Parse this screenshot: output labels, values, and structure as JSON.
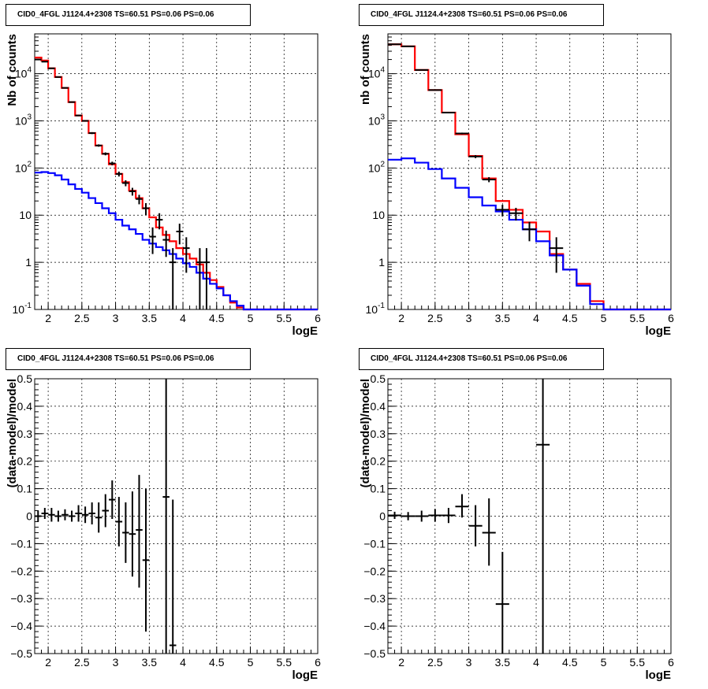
{
  "panels": [
    {
      "title": "CID0_4FGL J1124.4+2308 TS=60.51 PS=0.06 PS=0.06",
      "chart_data": {
        "type": "line",
        "title": "CID0_4FGL J1124.4+2308 TS=60.51 PS=0.06 PS=0.06",
        "xlabel": "logE",
        "ylabel": "Nb of counts",
        "xlim": [
          1.8,
          6.0
        ],
        "ylim": [
          0.1,
          70000
        ],
        "yscale": "log",
        "grid": true,
        "xticks": [
          "2",
          "2.5",
          "3",
          "3.5",
          "4",
          "4.5",
          "5",
          "5.5",
          "6"
        ],
        "yticks": [
          "10^-1",
          "1",
          "10",
          "10^2",
          "10^3",
          "10^4"
        ],
        "bin_edges": [
          1.8,
          1.9,
          2.0,
          2.1,
          2.2,
          2.3,
          2.4,
          2.5,
          2.6,
          2.7,
          2.8,
          2.9,
          3.0,
          3.1,
          3.2,
          3.3,
          3.4,
          3.5,
          3.6,
          3.7,
          3.8,
          3.9,
          4.0,
          4.1,
          4.2,
          4.3,
          4.4,
          4.5,
          4.6,
          4.7,
          4.8,
          4.9,
          5.0,
          5.1,
          5.2,
          5.3,
          5.4,
          5.5,
          5.6,
          5.7,
          5.8,
          5.9,
          6.0
        ],
        "series": [
          {
            "color": "#ff0000",
            "style": "step",
            "values": [
              22000,
              19000,
              13000,
              8500,
              5000,
              2500,
              1300,
              1000,
              550,
              300,
              200,
              120,
              75,
              50,
              33,
              23,
              14,
              9,
              5.5,
              3.8,
              2.8,
              2.0,
              1.5,
              1.2,
              0.9,
              0.6,
              0.42,
              0.3,
              0.2,
              0.14,
              0.11,
              0.1,
              0.1,
              0.1,
              0.1,
              0.1,
              0.1,
              0.1,
              0.1,
              0.1,
              0.1,
              0.1
            ]
          },
          {
            "color": "#0000ff",
            "style": "step",
            "values": [
              80,
              82,
              78,
              70,
              57,
              45,
              36,
              30,
              23,
              18,
              14,
              11,
              8,
              6,
              5,
              4,
              3,
              2.5,
              2.1,
              1.8,
              1.5,
              1.2,
              0.95,
              0.8,
              0.6,
              0.45,
              0.35,
              0.28,
              0.2,
              0.15,
              0.12,
              0.1,
              0.1,
              0.1,
              0.1,
              0.1,
              0.1,
              0.1,
              0.1,
              0.1,
              0.1,
              0.1
            ]
          },
          {
            "color": "#000000",
            "style": "points",
            "points": [
              {
                "x": 1.85,
                "y": 20000,
                "ylo": 19800,
                "yhi": 20200
              },
              {
                "x": 1.95,
                "y": 18000,
                "ylo": 17800,
                "yhi": 18200
              },
              {
                "x": 2.05,
                "y": 13000,
                "ylo": 12800,
                "yhi": 13200
              },
              {
                "x": 2.15,
                "y": 8500,
                "ylo": 8300,
                "yhi": 8700
              },
              {
                "x": 2.25,
                "y": 5000,
                "ylo": 4900,
                "yhi": 5100
              },
              {
                "x": 2.35,
                "y": 2500,
                "ylo": 2450,
                "yhi": 2550
              },
              {
                "x": 2.45,
                "y": 1300,
                "ylo": 1260,
                "yhi": 1340
              },
              {
                "x": 2.55,
                "y": 1000,
                "ylo": 970,
                "yhi": 1030
              },
              {
                "x": 2.65,
                "y": 550,
                "ylo": 525,
                "yhi": 575
              },
              {
                "x": 2.75,
                "y": 300,
                "ylo": 283,
                "yhi": 317
              },
              {
                "x": 2.85,
                "y": 200,
                "ylo": 186,
                "yhi": 214
              },
              {
                "x": 2.95,
                "y": 125,
                "ylo": 114,
                "yhi": 136
              },
              {
                "x": 3.05,
                "y": 75,
                "ylo": 66,
                "yhi": 84
              },
              {
                "x": 3.15,
                "y": 48,
                "ylo": 41,
                "yhi": 55
              },
              {
                "x": 3.25,
                "y": 32,
                "ylo": 26,
                "yhi": 38
              },
              {
                "x": 3.35,
                "y": 22,
                "ylo": 17,
                "yhi": 27
              },
              {
                "x": 3.45,
                "y": 14,
                "ylo": 10,
                "yhi": 18
              },
              {
                "x": 3.55,
                "y": 3.5,
                "ylo": 1.5,
                "yhi": 5.5
              },
              {
                "x": 3.65,
                "y": 8,
                "ylo": 5,
                "yhi": 11
              },
              {
                "x": 3.75,
                "y": 3,
                "ylo": 1.3,
                "yhi": 4.7
              },
              {
                "x": 3.85,
                "y": 1,
                "ylo": 0.1,
                "yhi": 2
              },
              {
                "x": 3.95,
                "y": 4.5,
                "ylo": 2.4,
                "yhi": 6.6
              },
              {
                "x": 4.05,
                "y": 2,
                "ylo": 0.6,
                "yhi": 3.4
              },
              {
                "x": 4.25,
                "y": 1,
                "ylo": 0.1,
                "yhi": 2
              },
              {
                "x": 4.35,
                "y": 1,
                "ylo": 0.1,
                "yhi": 2
              }
            ]
          }
        ]
      }
    },
    {
      "title": "CID0_4FGL J1124.4+2308 TS=60.51 PS=0.06 PS=0.06",
      "chart_data": {
        "type": "line",
        "title": "CID0_4FGL J1124.4+2308 TS=60.51 PS=0.06 PS=0.06",
        "xlabel": "logE",
        "ylabel": "nb of counts",
        "xlim": [
          1.8,
          6.0
        ],
        "ylim": [
          0.1,
          70000
        ],
        "yscale": "log",
        "grid": true,
        "xticks": [
          "2",
          "2.5",
          "3",
          "3.5",
          "4",
          "4.5",
          "5",
          "5.5",
          "6"
        ],
        "yticks": [
          "10^-1",
          "1",
          "10",
          "10^2",
          "10^3",
          "10^4"
        ],
        "bin_edges": [
          1.8,
          2.0,
          2.2,
          2.4,
          2.6,
          2.8,
          3.0,
          3.2,
          3.4,
          3.6,
          3.8,
          4.0,
          4.2,
          4.4,
          4.6,
          4.8,
          5.0,
          5.2,
          5.4,
          5.6,
          5.8,
          6.0
        ],
        "series": [
          {
            "color": "#ff0000",
            "style": "step",
            "values": [
              42000,
              38000,
              12000,
              4500,
              1500,
              520,
              180,
              60,
              20,
              13,
              7,
              4.5,
              1.5,
              0.7,
              0.35,
              0.15,
              0.1,
              0.1,
              0.1,
              0.1,
              0.1
            ]
          },
          {
            "color": "#0000ff",
            "style": "step",
            "values": [
              150,
              160,
              130,
              95,
              60,
              38,
              24,
              16,
              12,
              8,
              5,
              2.8,
              1.4,
              0.7,
              0.32,
              0.13,
              0.1,
              0.1,
              0.1,
              0.1,
              0.1
            ]
          },
          {
            "color": "#000000",
            "style": "points",
            "points": [
              {
                "x": 1.9,
                "y": 42000,
                "ylo": 41800,
                "yhi": 42200
              },
              {
                "x": 2.1,
                "y": 38000,
                "ylo": 37800,
                "yhi": 38200
              },
              {
                "x": 2.3,
                "y": 12000,
                "ylo": 11900,
                "yhi": 12100
              },
              {
                "x": 2.5,
                "y": 4500,
                "ylo": 4430,
                "yhi": 4570
              },
              {
                "x": 2.7,
                "y": 1500,
                "ylo": 1460,
                "yhi": 1540
              },
              {
                "x": 2.9,
                "y": 540,
                "ylo": 517,
                "yhi": 563
              },
              {
                "x": 3.1,
                "y": 175,
                "ylo": 162,
                "yhi": 188
              },
              {
                "x": 3.3,
                "y": 57,
                "ylo": 50,
                "yhi": 64
              },
              {
                "x": 3.5,
                "y": 13,
                "ylo": 9.4,
                "yhi": 16.6
              },
              {
                "x": 3.7,
                "y": 11,
                "ylo": 7.7,
                "yhi": 14.3
              },
              {
                "x": 3.9,
                "y": 5,
                "ylo": 2.8,
                "yhi": 7.2
              },
              {
                "x": 4.3,
                "y": 2,
                "ylo": 0.6,
                "yhi": 3.4
              }
            ]
          }
        ]
      }
    },
    {
      "title": "CID0_4FGL J1124.4+2308 TS=60.51 PS=0.06 PS=0.06",
      "chart_data": {
        "type": "scatter",
        "title": "CID0_4FGL J1124.4+2308 TS=60.51 PS=0.06 PS=0.06",
        "xlabel": "logE",
        "ylabel": "(data-model)/model",
        "xlim": [
          1.8,
          6.0
        ],
        "ylim": [
          -0.5,
          0.5
        ],
        "grid": true,
        "xticks": [
          "2",
          "2.5",
          "3",
          "3.5",
          "4",
          "4.5",
          "5",
          "5.5",
          "6"
        ],
        "yticks": [
          "−0.5",
          "−0.4",
          "−0.3",
          "−0.2",
          "−0.1",
          "0",
          "0.1",
          "0.2",
          "0.3",
          "0.4",
          "0.5"
        ],
        "series": [
          {
            "color": "#000000",
            "style": "points",
            "points": [
              {
                "x": 1.85,
                "y": 0.0,
                "ylo": -0.02,
                "yhi": 0.02
              },
              {
                "x": 1.95,
                "y": 0.01,
                "ylo": -0.01,
                "yhi": 0.03
              },
              {
                "x": 2.05,
                "y": 0.005,
                "ylo": -0.02,
                "yhi": 0.03
              },
              {
                "x": 2.15,
                "y": 0.0,
                "ylo": -0.02,
                "yhi": 0.02
              },
              {
                "x": 2.25,
                "y": 0.005,
                "ylo": -0.015,
                "yhi": 0.025
              },
              {
                "x": 2.35,
                "y": 0.0,
                "ylo": -0.02,
                "yhi": 0.02
              },
              {
                "x": 2.45,
                "y": 0.01,
                "ylo": -0.02,
                "yhi": 0.04
              },
              {
                "x": 2.55,
                "y": 0.005,
                "ylo": -0.025,
                "yhi": 0.035
              },
              {
                "x": 2.65,
                "y": 0.01,
                "ylo": -0.03,
                "yhi": 0.05
              },
              {
                "x": 2.75,
                "y": -0.005,
                "ylo": -0.06,
                "yhi": 0.05
              },
              {
                "x": 2.85,
                "y": 0.02,
                "ylo": -0.04,
                "yhi": 0.08
              },
              {
                "x": 2.95,
                "y": 0.06,
                "ylo": -0.01,
                "yhi": 0.13
              },
              {
                "x": 3.05,
                "y": -0.02,
                "ylo": -0.11,
                "yhi": 0.07
              },
              {
                "x": 3.15,
                "y": -0.06,
                "ylo": -0.17,
                "yhi": 0.05
              },
              {
                "x": 3.25,
                "y": -0.065,
                "ylo": -0.22,
                "yhi": 0.09
              },
              {
                "x": 3.35,
                "y": -0.05,
                "ylo": -0.26,
                "yhi": 0.15
              },
              {
                "x": 3.45,
                "y": -0.16,
                "ylo": -0.42,
                "yhi": 0.1
              },
              {
                "x": 3.75,
                "y": 0.07,
                "ylo": -0.5,
                "yhi": 0.5
              },
              {
                "x": 3.85,
                "y": -0.47,
                "ylo": -0.5,
                "yhi": 0.06
              }
            ]
          }
        ]
      }
    },
    {
      "title": "CID0_4FGL J1124.4+2308 TS=60.51 PS=0.06 PS=0.06",
      "chart_data": {
        "type": "scatter",
        "title": "CID0_4FGL J1124.4+2308 TS=60.51 PS=0.06 PS=0.06",
        "xlabel": "logE",
        "ylabel": "(data-model)/model",
        "xlim": [
          1.8,
          6.0
        ],
        "ylim": [
          -0.5,
          0.5
        ],
        "grid": true,
        "xticks": [
          "2",
          "2.5",
          "3",
          "3.5",
          "4",
          "4.5",
          "5",
          "5.5",
          "6"
        ],
        "yticks": [
          "−0.5",
          "−0.4",
          "−0.3",
          "−0.2",
          "−0.1",
          "0",
          "0.1",
          "0.2",
          "0.3",
          "0.4",
          "0.5"
        ],
        "series": [
          {
            "color": "#000000",
            "style": "points",
            "points": [
              {
                "x": 1.9,
                "y": 0.003,
                "ylo": -0.01,
                "yhi": 0.016
              },
              {
                "x": 2.1,
                "y": 0.0,
                "ylo": -0.015,
                "yhi": 0.015
              },
              {
                "x": 2.3,
                "y": 0.0,
                "ylo": -0.02,
                "yhi": 0.02
              },
              {
                "x": 2.5,
                "y": 0.003,
                "ylo": -0.02,
                "yhi": 0.026
              },
              {
                "x": 2.7,
                "y": 0.003,
                "ylo": -0.025,
                "yhi": 0.03
              },
              {
                "x": 2.9,
                "y": 0.035,
                "ylo": -0.005,
                "yhi": 0.08
              },
              {
                "x": 3.1,
                "y": -0.035,
                "ylo": -0.11,
                "yhi": 0.04
              },
              {
                "x": 3.3,
                "y": -0.06,
                "ylo": -0.18,
                "yhi": 0.065
              },
              {
                "x": 3.5,
                "y": -0.32,
                "ylo": -0.5,
                "yhi": -0.13
              },
              {
                "x": 4.1,
                "y": 0.26,
                "ylo": -0.5,
                "yhi": 0.5
              }
            ]
          }
        ]
      }
    }
  ]
}
